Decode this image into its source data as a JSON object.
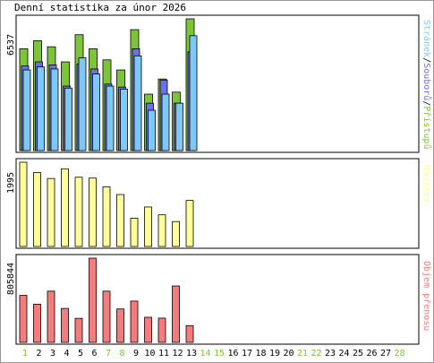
{
  "title": "Denní statistika za únor 2026",
  "colors": {
    "pristupu": "#7dc43a",
    "souboru": "#6f6fe8",
    "stranek": "#7ec8f7",
    "navstev": "#ffff99",
    "objem": "#f57c7c",
    "weekend_day": "#80c040",
    "weekday": "#000000",
    "border": "#000000"
  },
  "chart_data": [
    {
      "type": "bar",
      "title": "",
      "ylabel": "6537",
      "legend_text": {
        "stranek": "Stránek",
        "sep1": "/",
        "souboru": "Souborů",
        "sep2": "/",
        "pristupu": "Přístupů"
      },
      "categories": [
        "1",
        "2",
        "3",
        "4",
        "5",
        "6",
        "7",
        "8",
        "9",
        "10",
        "11",
        "12",
        "13"
      ],
      "ymax": 6537,
      "series": [
        {
          "name": "Přístupů",
          "key": "pristupu",
          "values": [
            5050,
            5450,
            5150,
            4400,
            5750,
            5050,
            4500,
            4000,
            6000,
            2800,
            3550,
            2900,
            6537
          ]
        },
        {
          "name": "Souborů",
          "key": "souboru",
          "values": [
            4200,
            4400,
            4250,
            3200,
            4300,
            4050,
            3300,
            3150,
            5050,
            2350,
            3500,
            2350,
            4900
          ]
        },
        {
          "name": "Stránek",
          "key": "stranek",
          "values": [
            4000,
            4150,
            4050,
            3100,
            4600,
            3800,
            3200,
            3050,
            4700,
            2000,
            2800,
            2350,
            5700
          ]
        }
      ]
    },
    {
      "type": "bar",
      "title": "",
      "ylabel": "1995",
      "legend_text": {
        "navstev": "Návštěv"
      },
      "categories": [
        "1",
        "2",
        "3",
        "4",
        "5",
        "6",
        "7",
        "8",
        "9",
        "10",
        "11",
        "12",
        "13"
      ],
      "ymax": 1995,
      "series": [
        {
          "name": "Návštěv",
          "key": "navstev",
          "values": [
            1995,
            1750,
            1610,
            1840,
            1640,
            1620,
            1410,
            1230,
            670,
            935,
            750,
            590,
            1090
          ]
        }
      ]
    },
    {
      "type": "bar",
      "title": "",
      "ylabel": "805844",
      "legend_text": {
        "objem": "Objem přenosu"
      },
      "categories": [
        "1",
        "2",
        "3",
        "4",
        "5",
        "6",
        "7",
        "8",
        "9",
        "10",
        "11",
        "12",
        "13"
      ],
      "ymax": 805844,
      "series": [
        {
          "name": "Objem přenosu",
          "key": "objem",
          "values": [
            450000,
            365000,
            490000,
            325000,
            230000,
            805844,
            490000,
            320000,
            395000,
            240000,
            232000,
            540000,
            160000
          ]
        }
      ]
    }
  ],
  "days": [
    {
      "label": "1",
      "weekend": true
    },
    {
      "label": "2",
      "weekend": false
    },
    {
      "label": "3",
      "weekend": false
    },
    {
      "label": "4",
      "weekend": false
    },
    {
      "label": "5",
      "weekend": false
    },
    {
      "label": "6",
      "weekend": false
    },
    {
      "label": "7",
      "weekend": true
    },
    {
      "label": "8",
      "weekend": true
    },
    {
      "label": "9",
      "weekend": false
    },
    {
      "label": "10",
      "weekend": false
    },
    {
      "label": "11",
      "weekend": false
    },
    {
      "label": "12",
      "weekend": false
    },
    {
      "label": "13",
      "weekend": false
    },
    {
      "label": "14",
      "weekend": true
    },
    {
      "label": "15",
      "weekend": true
    },
    {
      "label": "16",
      "weekend": false
    },
    {
      "label": "17",
      "weekend": false
    },
    {
      "label": "18",
      "weekend": false
    },
    {
      "label": "19",
      "weekend": false
    },
    {
      "label": "20",
      "weekend": false
    },
    {
      "label": "21",
      "weekend": true
    },
    {
      "label": "22",
      "weekend": true
    },
    {
      "label": "23",
      "weekend": false
    },
    {
      "label": "24",
      "weekend": false
    },
    {
      "label": "25",
      "weekend": false
    },
    {
      "label": "26",
      "weekend": false
    },
    {
      "label": "27",
      "weekend": false
    },
    {
      "label": "28",
      "weekend": true
    }
  ]
}
